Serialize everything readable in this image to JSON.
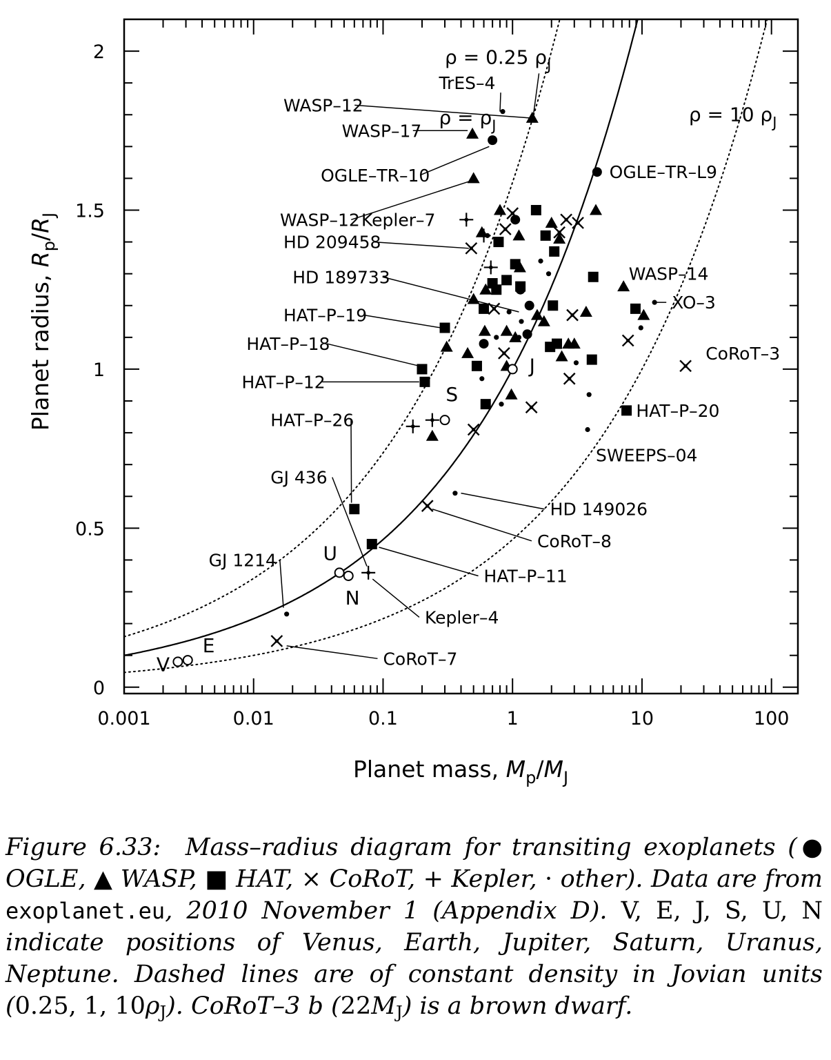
{
  "chart_data": {
    "type": "scatter",
    "xlabel": {
      "main": "Planet mass, ",
      "var": "M",
      "sub": "p",
      "rest": "/",
      "var2": "M",
      "sub2": "J"
    },
    "ylabel": {
      "main": "Planet radius, ",
      "var": "R",
      "sub": "p",
      "rest": "/",
      "var2": "R",
      "sub2": "J"
    },
    "x_scale": "log",
    "xlim": [
      0.001,
      160
    ],
    "ylim": [
      -0.02,
      2.1
    ],
    "x_ticks": [
      0.001,
      0.01,
      0.1,
      1,
      10,
      100
    ],
    "x_tick_labels": [
      "0.001",
      "0.01",
      "0.1",
      "1",
      "10",
      "100"
    ],
    "y_ticks": [
      0,
      0.5,
      1,
      1.5,
      2
    ],
    "y_tick_labels": [
      "0",
      "0.5",
      "1",
      "1.5",
      "2"
    ],
    "curves": [
      {
        "label": "ρ = 0.25 ρJ",
        "label_parts": [
          "ρ = 0.25 ρ",
          "J"
        ],
        "density": 0.25,
        "style": "dotted"
      },
      {
        "label": "ρ = ρJ",
        "label_parts": [
          "ρ = ρ",
          "J"
        ],
        "density": 1,
        "style": "solid"
      },
      {
        "label": "ρ = 10 ρJ",
        "label_parts": [
          "ρ = 10 ρ",
          "J"
        ],
        "density": 10,
        "style": "dotted"
      }
    ],
    "series": [
      {
        "marker": "circle",
        "points": [
          [
            0.7,
            1.72
          ],
          [
            4.5,
            1.62
          ],
          [
            1.05,
            1.47
          ],
          [
            1.35,
            1.2
          ],
          [
            1.3,
            1.11
          ],
          [
            0.6,
            1.08
          ],
          [
            1.15,
            1.25
          ]
        ]
      },
      {
        "marker": "triangle",
        "points": [
          [
            1.42,
            1.79
          ],
          [
            0.49,
            1.74
          ],
          [
            0.5,
            1.6
          ],
          [
            0.58,
            1.43
          ],
          [
            0.8,
            1.5
          ],
          [
            1.12,
            1.42
          ],
          [
            1.14,
            1.32
          ],
          [
            2.0,
            1.46
          ],
          [
            2.3,
            1.41
          ],
          [
            4.4,
            1.5
          ],
          [
            0.61,
            1.12
          ],
          [
            0.45,
            1.05
          ],
          [
            0.9,
            1.12
          ],
          [
            1.05,
            1.1
          ],
          [
            1.55,
            1.17
          ],
          [
            1.75,
            1.15
          ],
          [
            2.4,
            1.04
          ],
          [
            2.7,
            1.08
          ],
          [
            3.0,
            1.08
          ],
          [
            3.7,
            1.18
          ],
          [
            7.2,
            1.26
          ],
          [
            10.3,
            1.17
          ],
          [
            0.31,
            1.07
          ],
          [
            0.24,
            0.79
          ],
          [
            0.98,
            0.92
          ],
          [
            0.9,
            1.01
          ],
          [
            0.5,
            1.22
          ],
          [
            0.62,
            1.25
          ]
        ]
      },
      {
        "marker": "square",
        "points": [
          [
            1.52,
            1.5
          ],
          [
            0.7,
            1.27
          ],
          [
            0.75,
            1.25
          ],
          [
            0.9,
            1.28
          ],
          [
            1.05,
            1.33
          ],
          [
            1.15,
            1.26
          ],
          [
            0.6,
            1.19
          ],
          [
            0.78,
            1.4
          ],
          [
            1.8,
            1.42
          ],
          [
            2.1,
            1.37
          ],
          [
            2.05,
            1.2
          ],
          [
            4.2,
            1.29
          ],
          [
            0.3,
            1.13
          ],
          [
            0.2,
            1.0
          ],
          [
            0.21,
            0.96
          ],
          [
            0.53,
            1.01
          ],
          [
            0.62,
            0.89
          ],
          [
            1.95,
            1.07
          ],
          [
            2.2,
            1.08
          ],
          [
            4.1,
            1.03
          ],
          [
            8.9,
            1.19
          ],
          [
            7.6,
            0.87
          ],
          [
            0.06,
            0.56
          ],
          [
            0.082,
            0.45
          ]
        ]
      },
      {
        "marker": "cross",
        "points": [
          [
            1.0,
            1.49
          ],
          [
            2.6,
            1.47
          ],
          [
            3.2,
            1.46
          ],
          [
            0.88,
            1.44
          ],
          [
            2.3,
            1.43
          ],
          [
            0.48,
            1.38
          ],
          [
            0.72,
            1.19
          ],
          [
            0.86,
            1.05
          ],
          [
            2.9,
            1.17
          ],
          [
            7.8,
            1.09
          ],
          [
            2.75,
            0.97
          ],
          [
            1.4,
            0.88
          ],
          [
            0.5,
            0.81
          ],
          [
            0.22,
            0.57
          ],
          [
            21.7,
            1.01
          ],
          [
            0.0151,
            0.145
          ]
        ]
      },
      {
        "marker": "plus",
        "points": [
          [
            0.44,
            1.47
          ],
          [
            0.6,
            1.42
          ],
          [
            0.68,
            1.32
          ],
          [
            0.24,
            0.84
          ],
          [
            0.17,
            0.82
          ],
          [
            0.077,
            0.36
          ]
        ]
      },
      {
        "marker": "dot",
        "points": [
          [
            0.84,
            1.81
          ],
          [
            0.64,
            1.42
          ],
          [
            1.65,
            1.34
          ],
          [
            1.9,
            1.3
          ],
          [
            0.94,
            1.18
          ],
          [
            1.17,
            1.15
          ],
          [
            1.12,
            1.1
          ],
          [
            0.75,
            1.1
          ],
          [
            0.58,
            0.97
          ],
          [
            0.82,
            0.89
          ],
          [
            3.1,
            1.02
          ],
          [
            3.9,
            0.92
          ],
          [
            9.8,
            1.13
          ],
          [
            12.5,
            1.21
          ],
          [
            3.8,
            0.81
          ],
          [
            0.36,
            0.61
          ],
          [
            0.018,
            0.23
          ]
        ]
      },
      {
        "marker": "open-circle",
        "points": [
          [
            0.0026,
            0.08
          ],
          [
            0.0031,
            0.085
          ],
          [
            1.0,
            1.0
          ],
          [
            0.3,
            0.84
          ],
          [
            0.046,
            0.36
          ],
          [
            0.054,
            0.35
          ]
        ]
      }
    ],
    "planet_labels": [
      {
        "text": "V",
        "x": 0.002,
        "y": 0.05
      },
      {
        "text": "E",
        "x": 0.0045,
        "y": 0.11
      },
      {
        "text": "J",
        "x": 1.42,
        "y": 0.99
      },
      {
        "text": "S",
        "x": 0.34,
        "y": 0.9
      },
      {
        "text": "U",
        "x": 0.039,
        "y": 0.4
      },
      {
        "text": "N",
        "x": 0.058,
        "y": 0.26
      }
    ],
    "annotations": [
      {
        "text": "TrES–4",
        "tx": 0.27,
        "ty": 1.9,
        "px": 0.8,
        "py": 1.81
      },
      {
        "text": "WASP–12",
        "tx": 0.017,
        "ty": 1.83,
        "px": 1.35,
        "py": 1.79
      },
      {
        "text": "WASP–17",
        "tx": 0.048,
        "ty": 1.75,
        "px": 0.45,
        "py": 1.75
      },
      {
        "text": "OGLE–TR–10",
        "tx": 0.033,
        "ty": 1.61,
        "px": 0.66,
        "py": 1.7
      },
      {
        "text": "WASP–12",
        "tx": 0.016,
        "ty": 1.47,
        "px": 0.46,
        "py": 1.59
      },
      {
        "text": "OGLE–TR–L9",
        "tx": 5.6,
        "ty": 1.62,
        "px": null,
        "py": null
      },
      {
        "text": "Kepler–7",
        "tx": 0.068,
        "ty": 1.47,
        "px": null,
        "py": null
      },
      {
        "text": "HD 209458",
        "tx": 0.017,
        "ty": 1.4,
        "px": 0.46,
        "py": 1.38
      },
      {
        "text": "HD 189733",
        "tx": 0.02,
        "ty": 1.29,
        "px": 1.12,
        "py": 1.18
      },
      {
        "text": "HAT–P–19",
        "tx": 0.017,
        "ty": 1.17,
        "px": 0.28,
        "py": 1.13
      },
      {
        "text": "HAT–P–18",
        "tx": 0.0088,
        "ty": 1.08,
        "px": 0.19,
        "py": 1.01
      },
      {
        "text": "HAT–P–12",
        "tx": 0.0081,
        "ty": 0.96,
        "px": 0.19,
        "py": 0.96
      },
      {
        "text": "HAT–P–26",
        "tx": 0.0135,
        "ty": 0.84,
        "px": 0.057,
        "py": 0.58
      },
      {
        "text": "WASP–14",
        "tx": 7.9,
        "ty": 1.3,
        "px": null,
        "py": null
      },
      {
        "text": "XO–3",
        "tx": 17.0,
        "ty": 1.21,
        "px": 13.0,
        "py": 1.21
      },
      {
        "text": "CoRoT–3",
        "tx": 31.0,
        "ty": 1.05,
        "px": null,
        "py": null
      },
      {
        "text": "HAT–P–20",
        "tx": 9.0,
        "ty": 0.87,
        "px": null,
        "py": null
      },
      {
        "text": "SWEEPS–04",
        "tx": 4.4,
        "ty": 0.73,
        "px": null,
        "py": null
      },
      {
        "text": "GJ 436",
        "tx": 0.0135,
        "ty": 0.66,
        "px": 0.075,
        "py": 0.38
      },
      {
        "text": "HD 149026",
        "tx": 1.95,
        "ty": 0.56,
        "px": 0.4,
        "py": 0.61
      },
      {
        "text": "CoRoT–8",
        "tx": 1.55,
        "ty": 0.46,
        "px": 0.24,
        "py": 0.56
      },
      {
        "text": "HAT–P–11",
        "tx": 0.6,
        "ty": 0.35,
        "px": 0.093,
        "py": 0.44
      },
      {
        "text": "GJ 1214",
        "tx": 0.0045,
        "ty": 0.4,
        "px": 0.017,
        "py": 0.25
      },
      {
        "text": "Kepler–4",
        "tx": 0.21,
        "ty": 0.22,
        "px": 0.083,
        "py": 0.34
      },
      {
        "text": "CoRoT–7",
        "tx": 0.1,
        "ty": 0.09,
        "px": 0.018,
        "py": 0.13
      }
    ]
  },
  "caption": {
    "figure_no": "Figure 6.33:",
    "t1": "Mass–radius diagram for transiting exoplanets (",
    "s_circle": "●",
    "t_ogle": " OGLE, ",
    "s_triangle": "▲",
    "t_wasp": " WASP, ",
    "s_square": "■",
    "t_hat": " HAT, ",
    "s_cross": "×",
    "t_corot": " CoRoT, ",
    "s_plus": "+",
    "t_kepler": " Kepler, ",
    "s_dot": "·",
    "t_other": " other). Data are from ",
    "source": "exoplanet.eu",
    "t2": ", 2010 November 1 (Appendix D). ",
    "planets": "V, E, J, S, U, N",
    "t3": " indicate positions of Venus, Earth, Jupiter, Saturn, Uranus, Neptune. Dashed lines are of constant density in Jovian units (",
    "units": "0.25, 1, 10",
    "rho": "ρ",
    "rho_sub": "J",
    "t4": "). CoRoT–3 b (",
    "mass": "22",
    "mass_var": "M",
    "mass_sub": "J",
    "t5": ") is a brown dwarf."
  }
}
